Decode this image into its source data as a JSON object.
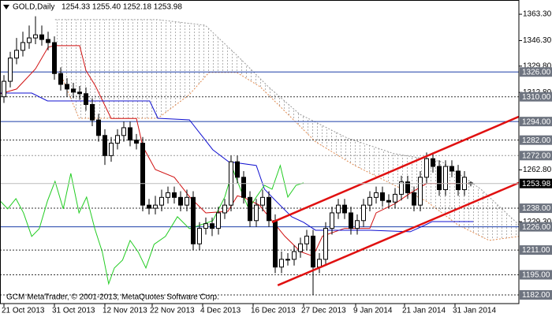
{
  "chart_data": {
    "type": "candlestick",
    "title": "GOLD,Daily",
    "ohlc_label": "1254.33 1255.40 1252.18 1253.98",
    "watermark": "GCM MetaTrader, © 2001-2013, MetaQuotes Software Corp.",
    "xlim": [
      -0.625,
      81.625
    ],
    "xticks": [
      {
        "value": 0,
        "label": "21 Oct 2013"
      },
      {
        "value": 8,
        "label": "31 Oct 2013"
      },
      {
        "value": 16,
        "label": "12 Nov 2013"
      },
      {
        "value": 23.5,
        "label": "22 Nov 2013"
      },
      {
        "value": 31.5,
        "label": "4 Dec 2013"
      },
      {
        "value": 39.5,
        "label": "16 Dec 2013"
      },
      {
        "value": 47.5,
        "label": "27 Dec 2013"
      },
      {
        "value": 55.75,
        "label": "9 Jan 2014"
      },
      {
        "value": 63.5,
        "label": "21 Jan 2014"
      },
      {
        "value": 71.5,
        "label": "31 Jan 2014"
      }
    ],
    "ylim": [
      1176.4,
      1372.5
    ],
    "yticks": [
      {
        "value": 1363.3,
        "label": "1363.30"
      },
      {
        "value": 1346.3,
        "label": "1346.30"
      },
      {
        "value": 1329.8,
        "label": "1329.80"
      },
      {
        "value": 1312.8,
        "label": "1312.80"
      },
      {
        "value": 1262.8,
        "label": "1262.80"
      },
      {
        "value": 1229.3,
        "label": "1229.30"
      }
    ],
    "up_color": "#ffffff",
    "down_color": "#000000",
    "open": [
      1310,
      1320,
      1335,
      1340,
      1345,
      1348,
      1350,
      1347,
      1345,
      1325,
      1318,
      1315,
      1313,
      1312,
      1305,
      1295,
      1285,
      1272,
      1280,
      1285,
      1290,
      1282,
      1280,
      1240,
      1238,
      1240,
      1245,
      1248,
      1245,
      1240,
      1245,
      1215,
      1225,
      1228,
      1225,
      1235,
      1240,
      1268,
      1258,
      1245,
      1230,
      1240,
      1245,
      1230,
      1200,
      1205,
      1205,
      1210,
      1215,
      1220,
      1200,
      1205,
      1225,
      1235,
      1240,
      1235,
      1225,
      1230,
      1240,
      1245,
      1248,
      1243,
      1242,
      1247,
      1255,
      1248,
      1240,
      1258,
      1270,
      1265,
      1250,
      1265,
      1262,
      1250,
      1254.33
    ],
    "high": [
      1324,
      1339,
      1348,
      1352,
      1356,
      1362,
      1356,
      1352,
      1349,
      1329,
      1322,
      1319,
      1317,
      1316,
      1309,
      1299,
      1289,
      1284,
      1289,
      1294,
      1294,
      1286,
      1284,
      1244,
      1246,
      1250,
      1252,
      1252,
      1249,
      1250,
      1249,
      1229,
      1232,
      1232,
      1239,
      1244,
      1272,
      1272,
      1262,
      1249,
      1244,
      1250,
      1249,
      1234,
      1210,
      1209,
      1214,
      1219,
      1224,
      1224,
      1209,
      1229,
      1239,
      1244,
      1244,
      1239,
      1234,
      1244,
      1249,
      1252,
      1252,
      1247,
      1251,
      1259,
      1259,
      1252,
      1262,
      1274,
      1274,
      1269,
      1269,
      1269,
      1266,
      1262,
      1255.4
    ],
    "low": [
      1306,
      1316,
      1331,
      1336,
      1341,
      1344,
      1343,
      1340,
      1321,
      1314,
      1310,
      1309,
      1308,
      1301,
      1291,
      1281,
      1266,
      1268,
      1276,
      1281,
      1278,
      1276,
      1236,
      1234,
      1234,
      1236,
      1241,
      1241,
      1236,
      1236,
      1211,
      1211,
      1221,
      1220,
      1221,
      1231,
      1236,
      1254,
      1241,
      1226,
      1226,
      1236,
      1226,
      1196,
      1196,
      1201,
      1201,
      1206,
      1211,
      1182,
      1196,
      1201,
      1221,
      1231,
      1231,
      1221,
      1221,
      1226,
      1236,
      1241,
      1239,
      1238,
      1238,
      1243,
      1244,
      1236,
      1236,
      1254,
      1261,
      1246,
      1246,
      1258,
      1246,
      1246,
      1252.18
    ],
    "close": [
      1320,
      1335,
      1340,
      1345,
      1348,
      1350,
      1347,
      1345,
      1325,
      1318,
      1315,
      1313,
      1312,
      1305,
      1295,
      1285,
      1272,
      1280,
      1285,
      1290,
      1282,
      1280,
      1240,
      1238,
      1240,
      1245,
      1248,
      1245,
      1240,
      1245,
      1215,
      1225,
      1228,
      1225,
      1235,
      1240,
      1268,
      1258,
      1245,
      1230,
      1240,
      1245,
      1230,
      1200,
      1205,
      1205,
      1210,
      1215,
      1220,
      1200,
      1205,
      1225,
      1235,
      1240,
      1235,
      1225,
      1230,
      1240,
      1245,
      1248,
      1243,
      1242,
      1247,
      1255,
      1248,
      1240,
      1258,
      1270,
      1265,
      1250,
      1265,
      1262,
      1250,
      1258,
      1253.98
    ],
    "current_price": {
      "value": 1253.98,
      "label": "1253.98"
    },
    "levels": [
      {
        "value": 1326,
        "label": "1326.00",
        "color": "#1c3fa8",
        "style": "solid"
      },
      {
        "value": 1310,
        "label": "1310.00",
        "color": "#333333",
        "style": "dotted"
      },
      {
        "value": 1294,
        "label": "1294.00",
        "color": "#1c3fa8",
        "style": "solid"
      },
      {
        "value": 1282,
        "label": "1282.00",
        "color": "#333333",
        "style": "dotted"
      },
      {
        "value": 1272,
        "label": "1272.00",
        "color": "#999999",
        "style": "dotted"
      },
      {
        "value": 1238,
        "label": "1238.00",
        "color": "#333333",
        "style": "dotted"
      },
      {
        "value": 1226,
        "label": "1226.00",
        "color": "#1c3fa8",
        "style": "solid"
      },
      {
        "value": 1211,
        "label": "1211.00",
        "color": "#333333",
        "style": "dotted"
      },
      {
        "value": 1195,
        "label": "1195.00",
        "color": "#333333",
        "style": "dotted"
      },
      {
        "value": 1182,
        "label": "1182.00",
        "color": "#333333",
        "style": "dotted"
      }
    ],
    "cloud": {
      "span_a": {
        "color": "#9a9a9a",
        "x": [
          8.1,
          24.4,
          31.9,
          36.9,
          41.9,
          46.9,
          54.4,
          61.9,
          69.4,
          75.6,
          81.6
        ],
        "values": [
          1359.8,
          1359.8,
          1356.2,
          1336.9,
          1316.5,
          1298.7,
          1283.4,
          1273.2,
          1268.1,
          1250.3,
          1227.4
        ]
      },
      "span_b": {
        "color": "#e08a50",
        "x": [
          8.8,
          11.9,
          24.4,
          29.4,
          32.5,
          36.9,
          40.6,
          44.4,
          49.4,
          55.6,
          61.9,
          66.9,
          71.9,
          76.9,
          81.6
        ],
        "values": [
          1326.7,
          1296.1,
          1296.1,
          1311.4,
          1325.7,
          1325.7,
          1316.5,
          1301.2,
          1280.9,
          1265.6,
          1252.8,
          1242.7,
          1227.4,
          1217.2,
          1219.8
        ]
      }
    },
    "indicator_lines": [
      {
        "color": "#d01010",
        "x": [
          -0.5,
          2,
          5,
          7,
          8,
          12,
          13,
          14.5,
          17,
          21,
          22,
          24,
          27,
          29.5,
          32,
          35.5,
          37,
          38,
          40.5,
          42.5,
          44.5,
          47,
          49,
          50.5,
          54,
          58,
          59,
          62,
          64.5,
          67,
          69.5,
          74
        ],
        "values": [
          1312,
          1315,
          1328,
          1342,
          1343,
          1343,
          1327,
          1317,
          1296,
          1296,
          1278,
          1263,
          1258,
          1245,
          1235,
          1236,
          1246,
          1245,
          1240,
          1230,
          1220,
          1210,
          1207,
          1220,
          1225,
          1225,
          1235,
          1241,
          1248,
          1254,
          1254,
          1254
        ]
      },
      {
        "color": "#1010d0",
        "x": [
          -0.6,
          4.4,
          6.9,
          23.1,
          24.4,
          29.4,
          33.1,
          35.6,
          40,
          41.3,
          43.1,
          45.6,
          47.5,
          49.4,
          58.1,
          64.4,
          66.9,
          67.9,
          74.4
        ],
        "values": [
          1312.4,
          1312.4,
          1307.3,
          1307.3,
          1296.1,
          1295.1,
          1275.8,
          1268.1,
          1265.6,
          1250.3,
          1242.7,
          1232.5,
          1228.9,
          1223.8,
          1223.8,
          1222.8,
          1227.4,
          1229.4,
          1229.4
        ]
      },
      {
        "color": "#22cc22",
        "x": [
          -0.6,
          0.6,
          1.9,
          3.1,
          4.4,
          5.6,
          6.9,
          8.1,
          9.4,
          10.6,
          11.9,
          13.1,
          14.4,
          15.6,
          16.6,
          17.5,
          18.8,
          20,
          21.3,
          22.5,
          23.8,
          25.6,
          27.5,
          29.4,
          31.3,
          33.1,
          35,
          36.3,
          37.5,
          38.8,
          40,
          41.3,
          42.5,
          43.8,
          45,
          46.3,
          47.5
        ],
        "values": [
          1242.7,
          1237.6,
          1244.2,
          1235,
          1219.8,
          1224.8,
          1242.7,
          1255.4,
          1237.6,
          1260.5,
          1235,
          1245.2,
          1224.8,
          1209.6,
          1189.2,
          1199.4,
          1204.5,
          1217.2,
          1209.6,
          1199.4,
          1214.7,
          1219.8,
          1232.5,
          1224.8,
          1227.4,
          1229.9,
          1245.2,
          1263,
          1250.3,
          1237.6,
          1245.2,
          1252.8,
          1250.3,
          1265.6,
          1245.2,
          1252.8,
          1254.4
        ]
      }
    ],
    "channel_lines": [
      {
        "color": "#e01010",
        "x": [
          42.5,
          81.6
        ],
        "values": [
          1228.9,
          1297.1
        ]
      },
      {
        "color": "#e01010",
        "x": [
          43.4,
          81.6
        ],
        "values": [
          1188.2,
          1254.4
        ]
      }
    ]
  }
}
